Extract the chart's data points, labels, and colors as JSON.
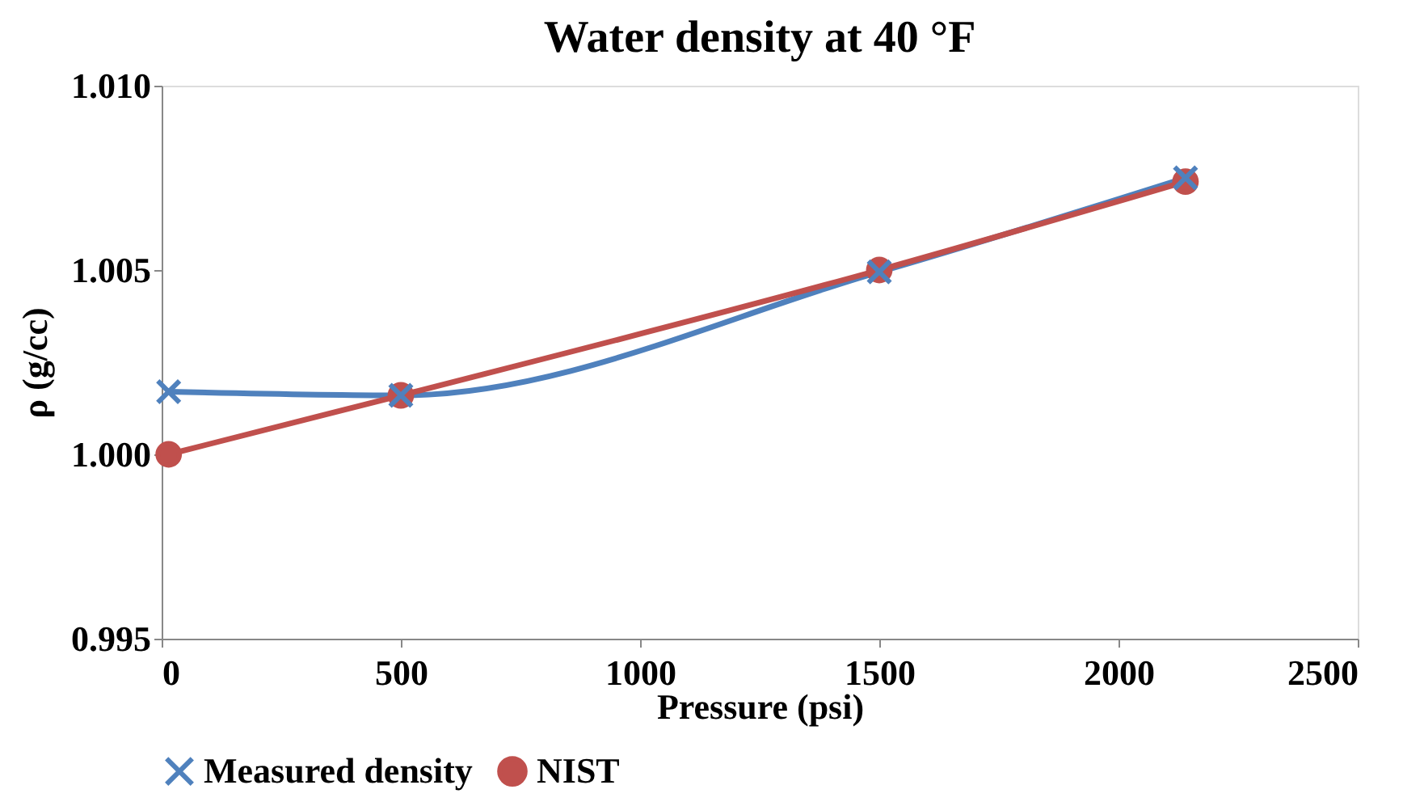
{
  "chart_data": {
    "type": "line",
    "title": "Water density at 40 °F",
    "xlabel": "Pressure (psi)",
    "ylabel": "ρ (g/cc)",
    "x": [
      14.7,
      500,
      1500,
      2140
    ],
    "series": [
      {
        "name": "Measured density",
        "color": "#4f81bd",
        "marker": "cross",
        "values": [
          1.0017,
          1.0016,
          1.00495,
          1.0075
        ]
      },
      {
        "name": "NIST",
        "color": "#c0504d",
        "marker": "circle",
        "values": [
          1.0,
          1.0016,
          1.005,
          1.0074
        ]
      }
    ],
    "xlim": [
      0,
      2500
    ],
    "xticks": [
      0,
      500,
      1000,
      1500,
      2000,
      2500
    ],
    "ylim": [
      0.995,
      1.01
    ],
    "yticks": [
      {
        "value": 0.995,
        "label": "0.995"
      },
      {
        "value": 1.0,
        "label": "1.000"
      },
      {
        "value": 1.005,
        "label": "1.005"
      },
      {
        "value": 1.01,
        "label": "1.010"
      }
    ],
    "grid": false,
    "legend": "bottom",
    "line_style": "solid"
  }
}
